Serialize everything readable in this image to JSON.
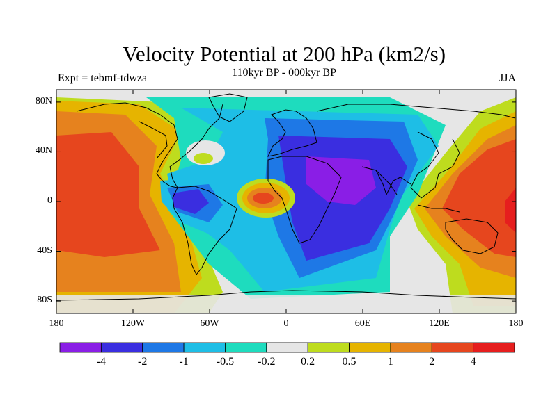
{
  "title": "Velocity Potential at 200 hPa (km2/s)",
  "subtitle": "110kyr BP - 000kyr BP",
  "left_label": "Expt = tebmf-tdwza",
  "right_label": "JJA",
  "axes": {
    "lat_ticks": [
      {
        "value": 80,
        "label": "80N"
      },
      {
        "value": 40,
        "label": "40N"
      },
      {
        "value": 0,
        "label": "0"
      },
      {
        "value": -40,
        "label": "40S"
      },
      {
        "value": -80,
        "label": "80S"
      }
    ],
    "lon_ticks": [
      {
        "value": -180,
        "label": "180"
      },
      {
        "value": -120,
        "label": "120W"
      },
      {
        "value": -60,
        "label": "60W"
      },
      {
        "value": 0,
        "label": "0"
      },
      {
        "value": 60,
        "label": "60E"
      },
      {
        "value": 120,
        "label": "120E"
      },
      {
        "value": 180,
        "label": "180"
      }
    ],
    "lon_range": [
      -180,
      180
    ],
    "lat_range": [
      -90,
      90
    ]
  },
  "colorbar": {
    "colors": [
      "#8a1ee6",
      "#3a2ee0",
      "#1e78e6",
      "#1ebee6",
      "#1edcbe",
      "#e6e6e6",
      "#bedc1e",
      "#e6b400",
      "#e6821e",
      "#e6461e",
      "#e61e1e"
    ],
    "labels": [
      "-4",
      "-2",
      "-1",
      "-0.5",
      "-0.2",
      "0.2",
      "0.5",
      "1",
      "2",
      "4"
    ]
  },
  "colors": {
    "ocean_neutral": "#e6e6e6",
    "coast": "#000000"
  }
}
